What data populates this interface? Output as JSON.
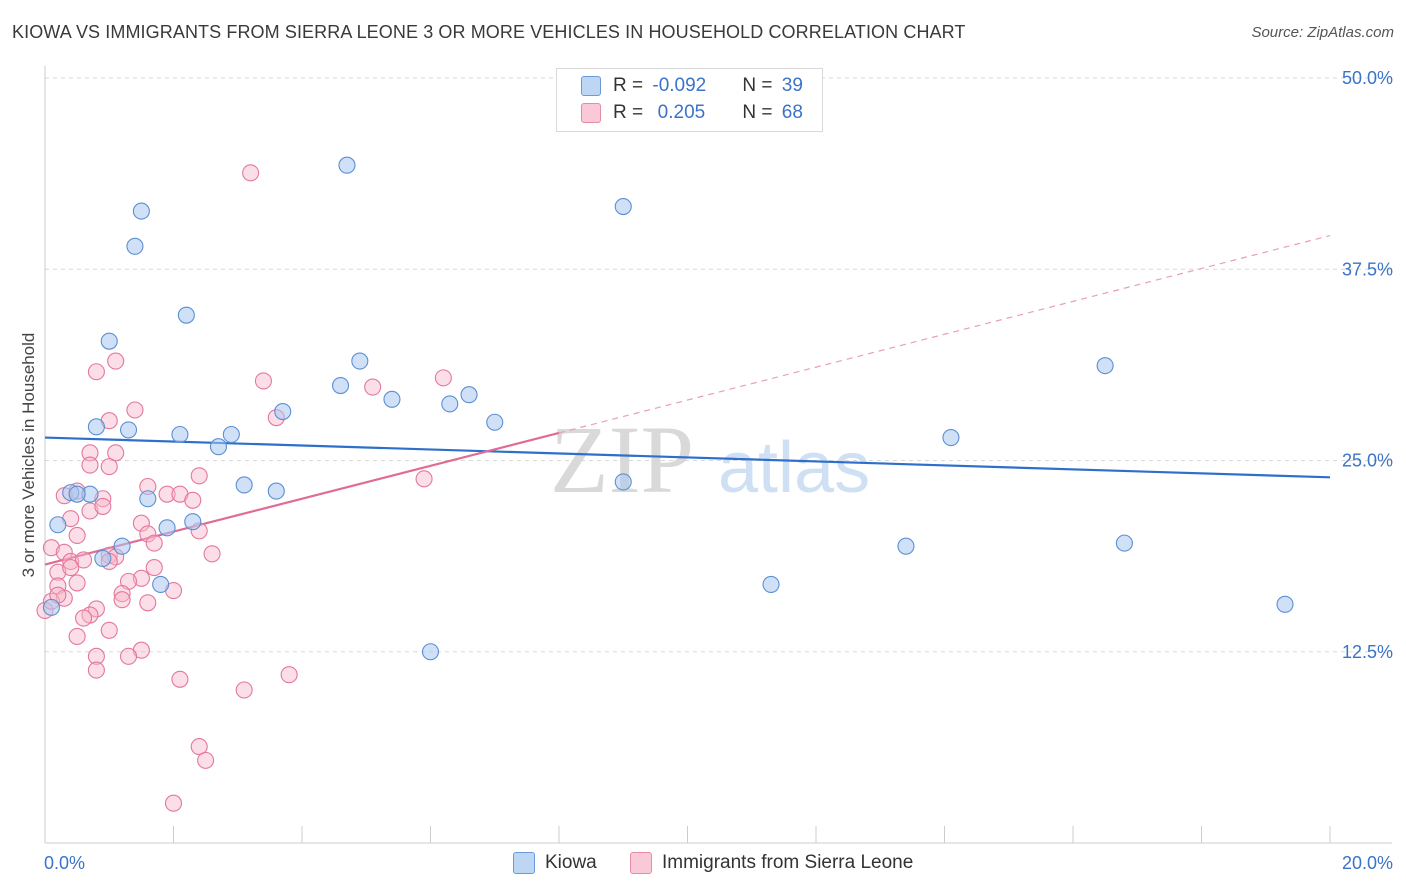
{
  "header": {
    "title": "KIOWA VS IMMIGRANTS FROM SIERRA LEONE 3 OR MORE VEHICLES IN HOUSEHOLD CORRELATION CHART",
    "source": "Source: ZipAtlas.com"
  },
  "legend": {
    "rows": [
      {
        "r_label": "R = ",
        "r_value": "-0.092",
        "n_label": "N = ",
        "n_value": "39"
      },
      {
        "r_label": "R = ",
        "r_value": " 0.205",
        "n_label": "N = ",
        "n_value": "68"
      }
    ]
  },
  "watermark": {
    "zip": "ZIP",
    "atlas": "atlas"
  },
  "colors": {
    "kiowa_fill": "#a9c8f0",
    "kiowa_stroke": "#5b8fd4",
    "kiowa_line": "#2f6fca",
    "sierra_fill": "#f7b6ca",
    "sierra_stroke": "#e4789b",
    "sierra_line": "#e06b94",
    "tick": "#3a73c9"
  },
  "chart_data": {
    "type": "scatter",
    "title": "KIOWA VS IMMIGRANTS FROM SIERRA LEONE 3 OR MORE VEHICLES IN HOUSEHOLD CORRELATION CHART",
    "xlabel": "",
    "ylabel": "3 or more Vehicles in Household",
    "xlim": [
      0,
      20
    ],
    "ylim": [
      0,
      50
    ],
    "x_tick_labels": [
      "0.0%",
      "20.0%"
    ],
    "y_ticks": [
      12.5,
      25.0,
      37.5,
      50.0
    ],
    "y_tick_labels": [
      "12.5%",
      "25.0%",
      "37.5%",
      "50.0%"
    ],
    "grid": true,
    "legend_labels": [
      "Kiowa",
      "Immigrants from Sierra Leone"
    ],
    "series": [
      {
        "name": "Kiowa",
        "points": [
          [
            4.7,
            44.3
          ],
          [
            9.0,
            41.6
          ],
          [
            1.5,
            41.3
          ],
          [
            1.4,
            39.0
          ],
          [
            2.2,
            34.5
          ],
          [
            1.0,
            32.8
          ],
          [
            4.9,
            31.5
          ],
          [
            16.5,
            31.2
          ],
          [
            4.6,
            29.9
          ],
          [
            5.4,
            29.0
          ],
          [
            6.6,
            29.3
          ],
          [
            6.3,
            28.7
          ],
          [
            3.7,
            28.2
          ],
          [
            7.0,
            27.5
          ],
          [
            0.8,
            27.2
          ],
          [
            1.3,
            27.0
          ],
          [
            2.1,
            26.7
          ],
          [
            2.9,
            26.7
          ],
          [
            2.7,
            25.9
          ],
          [
            14.1,
            26.5
          ],
          [
            3.1,
            23.4
          ],
          [
            3.6,
            23.0
          ],
          [
            9.0,
            23.6
          ],
          [
            0.4,
            22.9
          ],
          [
            0.7,
            22.8
          ],
          [
            0.5,
            22.8
          ],
          [
            1.6,
            22.5
          ],
          [
            2.3,
            21.0
          ],
          [
            1.9,
            20.6
          ],
          [
            0.2,
            20.8
          ],
          [
            1.2,
            19.4
          ],
          [
            0.9,
            18.6
          ],
          [
            13.4,
            19.4
          ],
          [
            16.8,
            19.6
          ],
          [
            1.8,
            16.9
          ],
          [
            11.3,
            16.9
          ],
          [
            19.3,
            15.6
          ],
          [
            6.0,
            12.5
          ],
          [
            0.1,
            15.4
          ]
        ],
        "trend": {
          "x": [
            0,
            20
          ],
          "y": [
            26.5,
            23.9
          ]
        }
      },
      {
        "name": "Immigrants from Sierra Leone",
        "points": [
          [
            3.2,
            43.8
          ],
          [
            1.1,
            31.5
          ],
          [
            0.8,
            30.8
          ],
          [
            3.4,
            30.2
          ],
          [
            6.2,
            30.4
          ],
          [
            5.1,
            29.8
          ],
          [
            1.4,
            28.3
          ],
          [
            3.6,
            27.8
          ],
          [
            1.0,
            27.6
          ],
          [
            0.7,
            25.5
          ],
          [
            1.1,
            25.5
          ],
          [
            0.7,
            24.7
          ],
          [
            1.0,
            24.6
          ],
          [
            2.4,
            24.0
          ],
          [
            5.9,
            23.8
          ],
          [
            1.6,
            23.3
          ],
          [
            0.5,
            23.0
          ],
          [
            0.3,
            22.7
          ],
          [
            1.9,
            22.8
          ],
          [
            2.1,
            22.8
          ],
          [
            0.9,
            22.5
          ],
          [
            2.3,
            22.4
          ],
          [
            0.7,
            21.7
          ],
          [
            0.4,
            21.2
          ],
          [
            1.5,
            20.9
          ],
          [
            2.4,
            20.4
          ],
          [
            1.6,
            20.2
          ],
          [
            0.5,
            20.1
          ],
          [
            1.7,
            19.6
          ],
          [
            0.1,
            19.3
          ],
          [
            0.3,
            19.0
          ],
          [
            2.6,
            18.9
          ],
          [
            1.0,
            18.8
          ],
          [
            1.1,
            18.7
          ],
          [
            1.0,
            18.4
          ],
          [
            0.4,
            18.4
          ],
          [
            0.6,
            18.5
          ],
          [
            1.7,
            18.0
          ],
          [
            0.2,
            17.7
          ],
          [
            0.4,
            18.0
          ],
          [
            1.5,
            17.3
          ],
          [
            1.3,
            17.1
          ],
          [
            0.2,
            16.8
          ],
          [
            1.2,
            16.3
          ],
          [
            1.2,
            15.9
          ],
          [
            0.3,
            16.0
          ],
          [
            1.6,
            15.7
          ],
          [
            0.8,
            15.3
          ],
          [
            0.0,
            15.2
          ],
          [
            0.7,
            14.9
          ],
          [
            0.6,
            14.7
          ],
          [
            1.0,
            13.9
          ],
          [
            0.5,
            13.5
          ],
          [
            1.5,
            12.6
          ],
          [
            1.3,
            12.2
          ],
          [
            0.8,
            12.2
          ],
          [
            0.8,
            11.3
          ],
          [
            3.8,
            11.0
          ],
          [
            2.1,
            10.7
          ],
          [
            3.1,
            10.0
          ],
          [
            2.4,
            6.3
          ],
          [
            2.5,
            5.4
          ],
          [
            2.0,
            2.6
          ],
          [
            0.1,
            15.8
          ],
          [
            0.2,
            16.2
          ],
          [
            2.0,
            16.5
          ],
          [
            0.5,
            17.0
          ],
          [
            0.9,
            22.0
          ]
        ],
        "trend": {
          "x": [
            0,
            8
          ],
          "y": [
            18.2,
            26.8
          ]
        },
        "trend_extension": {
          "x": [
            8,
            20
          ],
          "y": [
            26.8,
            39.7
          ]
        }
      }
    ]
  }
}
